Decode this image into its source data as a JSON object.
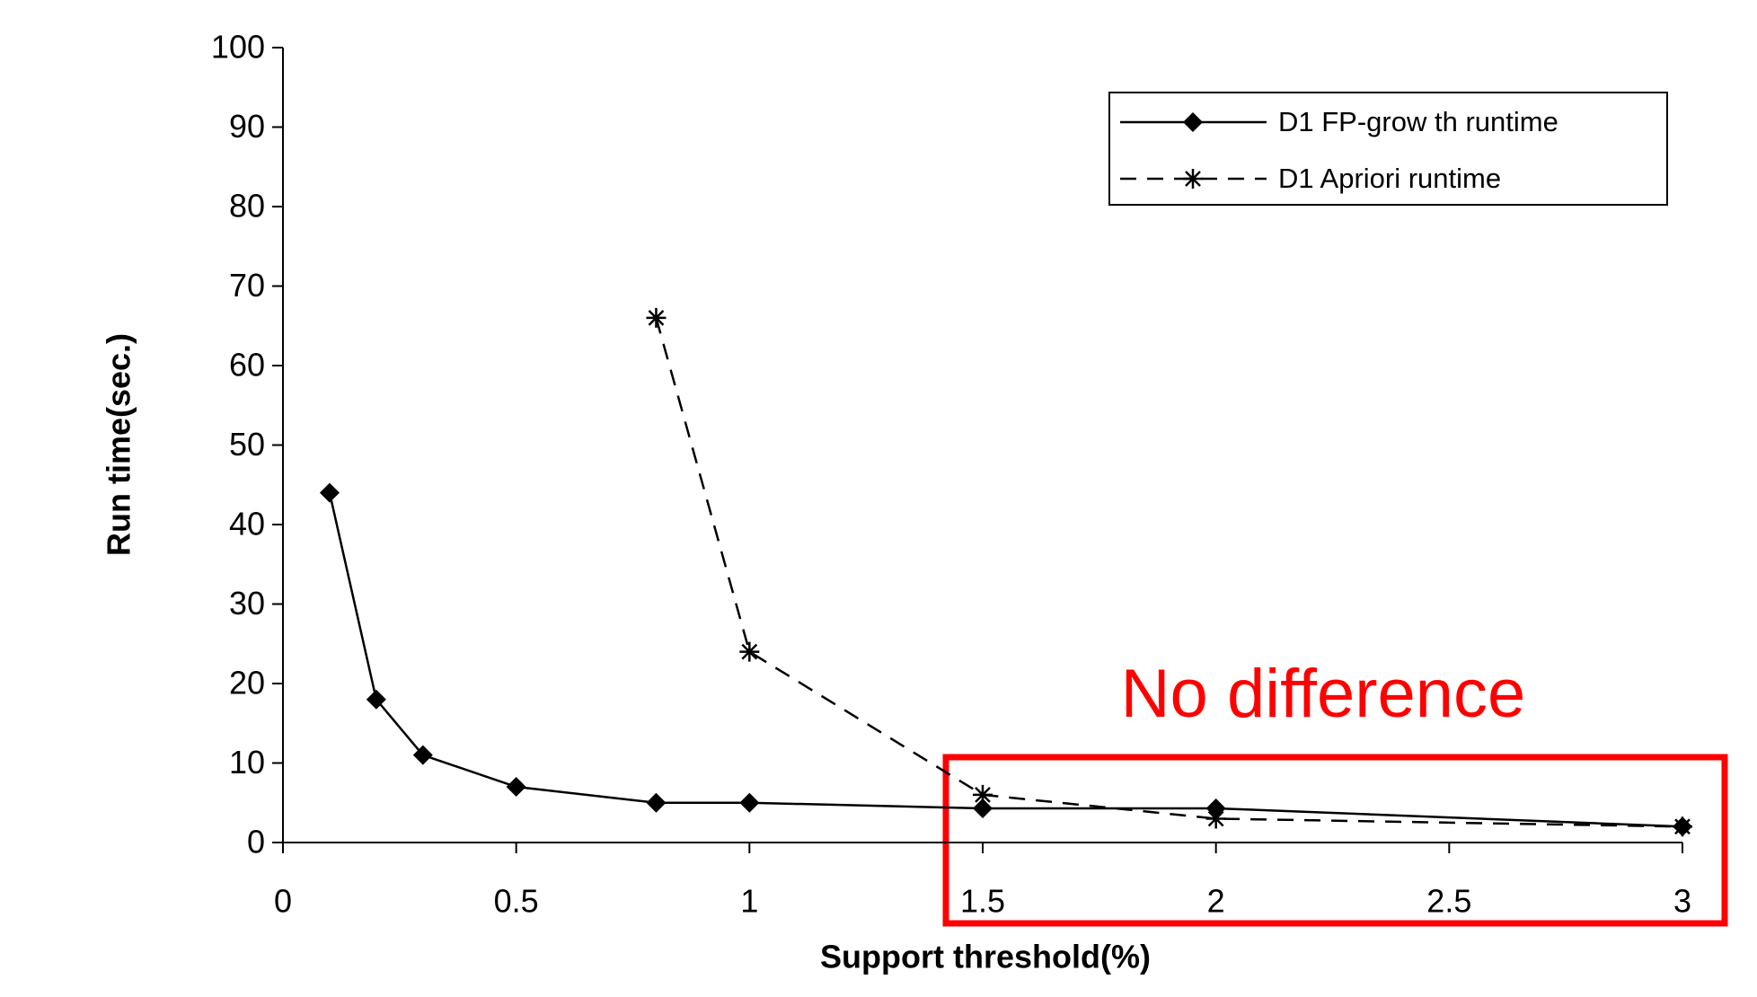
{
  "chart_data": {
    "type": "line",
    "x_label": "Support threshold(%)",
    "y_label": "Run time(sec.)",
    "annotation": "No difference",
    "xlim": [
      0,
      3
    ],
    "xticks": [
      0,
      0.5,
      1,
      1.5,
      2,
      2.5,
      3
    ],
    "ylim": [
      0,
      100
    ],
    "yticks": [
      0,
      10,
      20,
      30,
      40,
      50,
      60,
      70,
      80,
      90,
      100
    ],
    "grid": false,
    "legend_position": "upper-right",
    "series": [
      {
        "name": "D1 FP-grow th runtime",
        "color": "#000000",
        "marker": "diamond",
        "dash": "solid",
        "x": [
          0.1,
          0.2,
          0.3,
          0.5,
          0.8,
          1,
          1.5,
          2,
          3
        ],
        "values": [
          44,
          18,
          11,
          7,
          5,
          5,
          4.3,
          4.3,
          2
        ]
      },
      {
        "name": "D1 Apriori runtime",
        "color": "#000000",
        "marker": "asterisk",
        "dash": "dashed",
        "x": [
          0.8,
          1,
          1.5,
          2,
          3
        ],
        "values": [
          66,
          24,
          6,
          3,
          2
        ]
      }
    ]
  }
}
